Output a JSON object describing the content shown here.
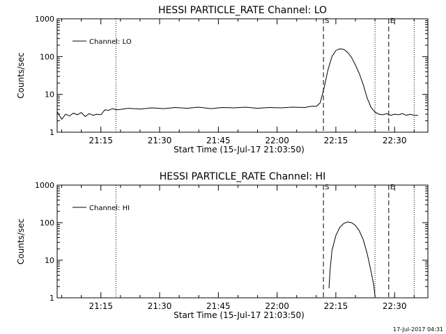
{
  "chart_data": [
    {
      "type": "line",
      "title": "HESSI PARTICLE_RATE Channel: LO",
      "xlabel": "Start Time (15-Jul-17 21:03:50)",
      "ylabel": "Counts/sec",
      "yscale": "log",
      "ylim": [
        1,
        1000
      ],
      "xlim": [
        "21:03:50",
        "22:38:30"
      ],
      "x_ticks": [
        "21:15",
        "21:30",
        "21:45",
        "22:00",
        "22:15",
        "22:30"
      ],
      "y_ticks": [
        "1",
        "10",
        "100",
        "1000"
      ],
      "legend": "top-left",
      "series": [
        {
          "name": "Channel: LO",
          "x": [
            "21:03:50",
            "21:05:00",
            "21:06:00",
            "21:07:00",
            "21:08:00",
            "21:09:00",
            "21:10:00",
            "21:11:00",
            "21:12:00",
            "21:13:00",
            "21:14:00",
            "21:15:00",
            "21:16:00",
            "21:17:00",
            "21:18:00",
            "21:19:00",
            "21:20:00",
            "21:22:00",
            "21:25:00",
            "21:28:00",
            "21:31:00",
            "21:34:00",
            "21:37:00",
            "21:40:00",
            "21:43:00",
            "21:46:00",
            "21:49:00",
            "21:52:00",
            "21:55:00",
            "21:58:00",
            "22:01:00",
            "22:04:00",
            "22:07:00",
            "22:09:00",
            "22:10:00",
            "22:11:00",
            "22:12:00",
            "22:13:00",
            "22:14:00",
            "22:15:00",
            "22:16:00",
            "22:17:00",
            "22:18:00",
            "22:19:00",
            "22:20:00",
            "22:21:00",
            "22:22:00",
            "22:23:00",
            "22:24:00",
            "22:25:00",
            "22:26:00",
            "22:27:00",
            "22:28:00",
            "22:29:00",
            "22:30:00",
            "22:31:00",
            "22:32:00",
            "22:33:00",
            "22:34:00",
            "22:35:00",
            "22:36:00"
          ],
          "values": [
            3.5,
            2.2,
            3.0,
            2.7,
            3.2,
            2.9,
            3.3,
            2.6,
            3.1,
            2.8,
            3.0,
            2.9,
            3.9,
            3.8,
            4.2,
            3.9,
            4.0,
            4.3,
            4.1,
            4.4,
            4.2,
            4.5,
            4.3,
            4.6,
            4.2,
            4.5,
            4.4,
            4.6,
            4.3,
            4.5,
            4.4,
            4.6,
            4.5,
            4.9,
            4.8,
            6.0,
            15,
            45,
            100,
            145,
            160,
            155,
            130,
            95,
            60,
            35,
            18,
            8,
            4.5,
            3.4,
            3.0,
            2.9,
            3.1,
            2.8,
            3.0,
            2.9,
            3.1,
            2.8,
            3.0,
            2.8,
            2.8
          ]
        }
      ],
      "markers": [
        {
          "label": "S",
          "time": "22:11:50",
          "style": "dashed"
        },
        {
          "label": "E",
          "time": "22:28:30",
          "style": "dashed"
        },
        {
          "label": "",
          "time": "21:18:50",
          "style": "dotted"
        },
        {
          "label": "",
          "time": "22:25:00",
          "style": "dotted"
        },
        {
          "label": "",
          "time": "22:35:00",
          "style": "dotted"
        }
      ]
    },
    {
      "type": "line",
      "title": "HESSI PARTICLE_RATE Channel: HI",
      "xlabel": "Start Time (15-Jul-17 21:03:50)",
      "ylabel": "Counts/sec",
      "yscale": "log",
      "ylim": [
        1,
        1000
      ],
      "xlim": [
        "21:03:50",
        "22:38:30"
      ],
      "x_ticks": [
        "21:15",
        "21:30",
        "21:45",
        "22:00",
        "22:15",
        "22:30"
      ],
      "y_ticks": [
        "1",
        "10",
        "100",
        "1000"
      ],
      "legend": "top-left",
      "series": [
        {
          "name": "Channel: HI",
          "x": [
            "22:13:15",
            "22:13:30",
            "22:14:00",
            "22:15:00",
            "22:16:00",
            "22:17:00",
            "22:18:00",
            "22:19:00",
            "22:20:00",
            "22:21:00",
            "22:22:00",
            "22:23:00",
            "22:24:00",
            "22:24:40",
            "22:25:00"
          ],
          "values": [
            1.8,
            5,
            18,
            45,
            75,
            95,
            105,
            100,
            85,
            60,
            35,
            15,
            5,
            2.2,
            1.1
          ]
        }
      ],
      "markers": [
        {
          "label": "S",
          "time": "22:11:50",
          "style": "dashed"
        },
        {
          "label": "E",
          "time": "22:28:30",
          "style": "dashed"
        },
        {
          "label": "",
          "time": "21:18:50",
          "style": "dotted"
        },
        {
          "label": "",
          "time": "22:25:00",
          "style": "dotted"
        },
        {
          "label": "",
          "time": "22:35:00",
          "style": "dotted"
        }
      ]
    }
  ],
  "footer": {
    "timestamp": "17-Jul-2017 04:31"
  }
}
